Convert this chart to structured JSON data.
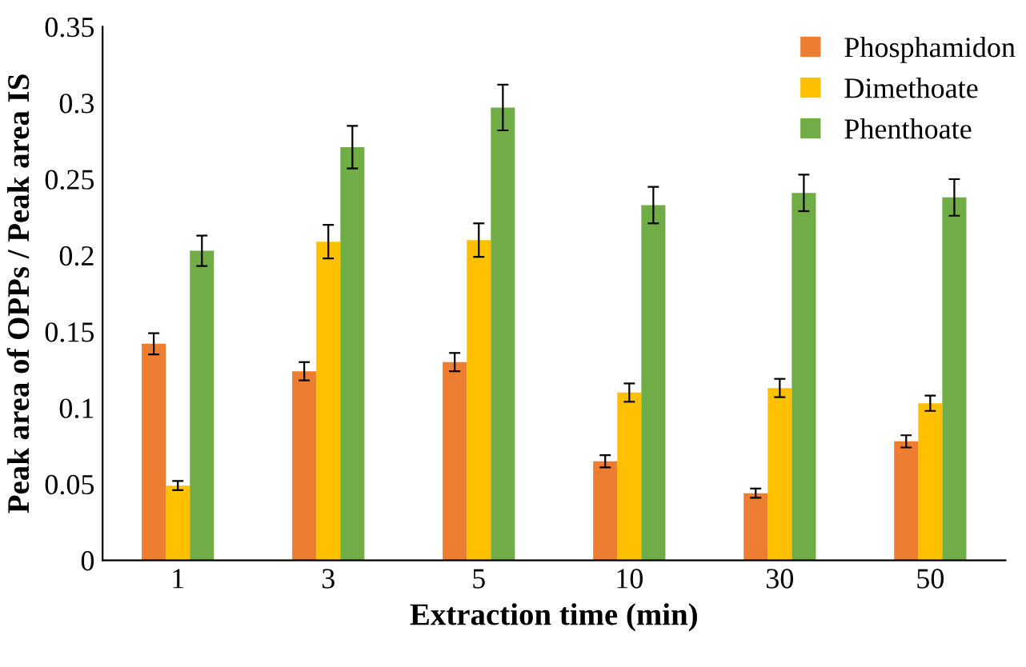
{
  "chart_data": {
    "type": "bar",
    "xlabel": "Extraction time (min)",
    "ylabel": "Peak area of OPPs / Peak area IS",
    "categories": [
      "1",
      "3",
      "5",
      "10",
      "30",
      "50"
    ],
    "series": [
      {
        "name": "Phosphamidon",
        "color": "#ed7d31",
        "values": [
          0.142,
          0.124,
          0.13,
          0.065,
          0.044,
          0.078
        ],
        "errors": [
          0.007,
          0.006,
          0.006,
          0.004,
          0.003,
          0.004
        ]
      },
      {
        "name": "Dimethoate",
        "color": "#ffc000",
        "values": [
          0.049,
          0.209,
          0.21,
          0.11,
          0.113,
          0.103
        ],
        "errors": [
          0.003,
          0.011,
          0.011,
          0.006,
          0.006,
          0.005
        ]
      },
      {
        "name": "Phenthoate",
        "color": "#70ad47",
        "values": [
          0.203,
          0.271,
          0.297,
          0.233,
          0.241,
          0.238
        ],
        "errors": [
          0.01,
          0.014,
          0.015,
          0.012,
          0.012,
          0.012
        ]
      }
    ],
    "ylim": [
      0,
      0.35
    ],
    "yticks": [
      0,
      0.05,
      0.1,
      0.15,
      0.2,
      0.25,
      0.3,
      0.35
    ],
    "grid": false,
    "legend": "top right"
  }
}
